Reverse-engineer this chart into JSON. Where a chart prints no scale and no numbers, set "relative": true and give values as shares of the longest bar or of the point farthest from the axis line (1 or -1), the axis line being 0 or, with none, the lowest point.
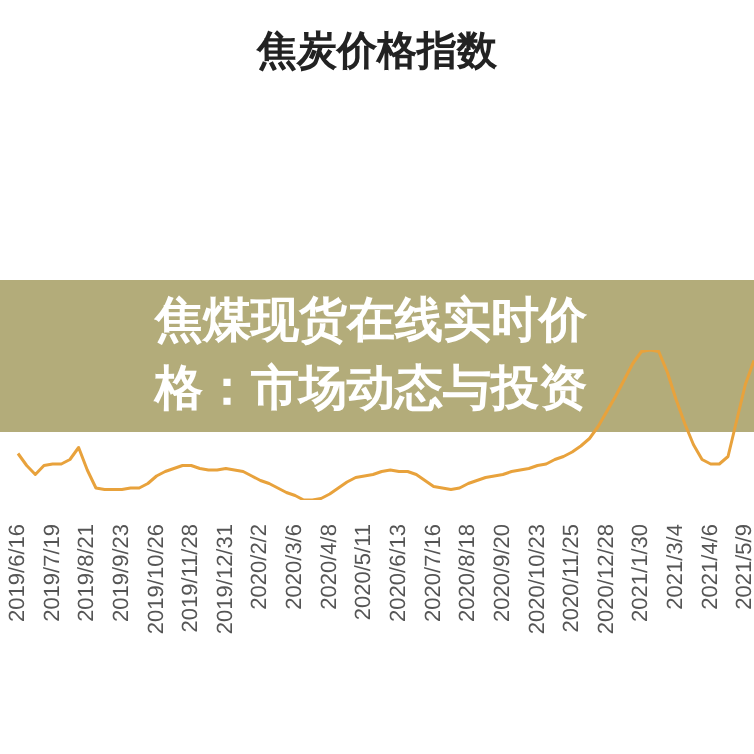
{
  "chart_data": {
    "type": "line",
    "title": "焦炭价格指数",
    "relative": true,
    "annotations": [
      "焦煤现货在线实时价格：市场动态与投资"
    ],
    "categories": [
      "2019/6/16",
      null,
      null,
      null,
      "2019/7/19",
      null,
      null,
      null,
      "2019/8/21",
      null,
      null,
      null,
      "2019/9/23",
      null,
      null,
      null,
      "2019/10/26",
      null,
      null,
      null,
      "2019/11/28",
      null,
      null,
      null,
      "2019/12/31",
      null,
      null,
      null,
      "2020/2/2",
      null,
      null,
      null,
      "2020/3/6",
      null,
      null,
      null,
      "2020/4/8",
      null,
      null,
      null,
      "2020/5/11",
      null,
      null,
      null,
      "2020/6/13",
      null,
      null,
      null,
      "2020/7/16",
      null,
      null,
      null,
      "2020/8/18",
      null,
      null,
      null,
      "2020/9/20",
      null,
      null,
      null,
      "2020/10/23",
      null,
      null,
      null,
      "2020/11/25",
      null,
      null,
      null,
      "2020/12/28",
      null,
      null,
      null,
      "2021/1/30",
      null,
      null,
      null,
      "2021/3/4",
      null,
      null,
      null,
      "2021/4/6",
      null,
      null,
      null,
      "2021/5/9",
      null
    ],
    "series": [
      {
        "color": "#e8a23c",
        "values": [
          0.31,
          0.23,
          0.17,
          0.23,
          0.24,
          0.24,
          0.27,
          0.35,
          0.2,
          0.08,
          0.07,
          0.07,
          0.07,
          0.08,
          0.08,
          0.11,
          0.16,
          0.19,
          0.21,
          0.23,
          0.23,
          0.21,
          0.2,
          0.2,
          0.21,
          0.2,
          0.19,
          0.16,
          0.13,
          0.11,
          0.08,
          0.05,
          0.03,
          0,
          0,
          0.01,
          0.04,
          0.08,
          0.12,
          0.15,
          0.16,
          0.17,
          0.19,
          0.2,
          0.19,
          0.19,
          0.17,
          0.13,
          0.09,
          0.08,
          0.07,
          0.08,
          0.11,
          0.13,
          0.15,
          0.16,
          0.17,
          0.19,
          0.2,
          0.21,
          0.23,
          0.24,
          0.27,
          0.29,
          0.32,
          0.36,
          0.41,
          0.49,
          0.59,
          0.69,
          0.8,
          0.91,
          0.99,
          1,
          0.99,
          0.85,
          0.67,
          0.51,
          0.37,
          0.27,
          0.24,
          0.24,
          0.29,
          0.53,
          0.77,
          0.93
        ]
      }
    ],
    "marker": "none",
    "line_style": "solid"
  }
}
